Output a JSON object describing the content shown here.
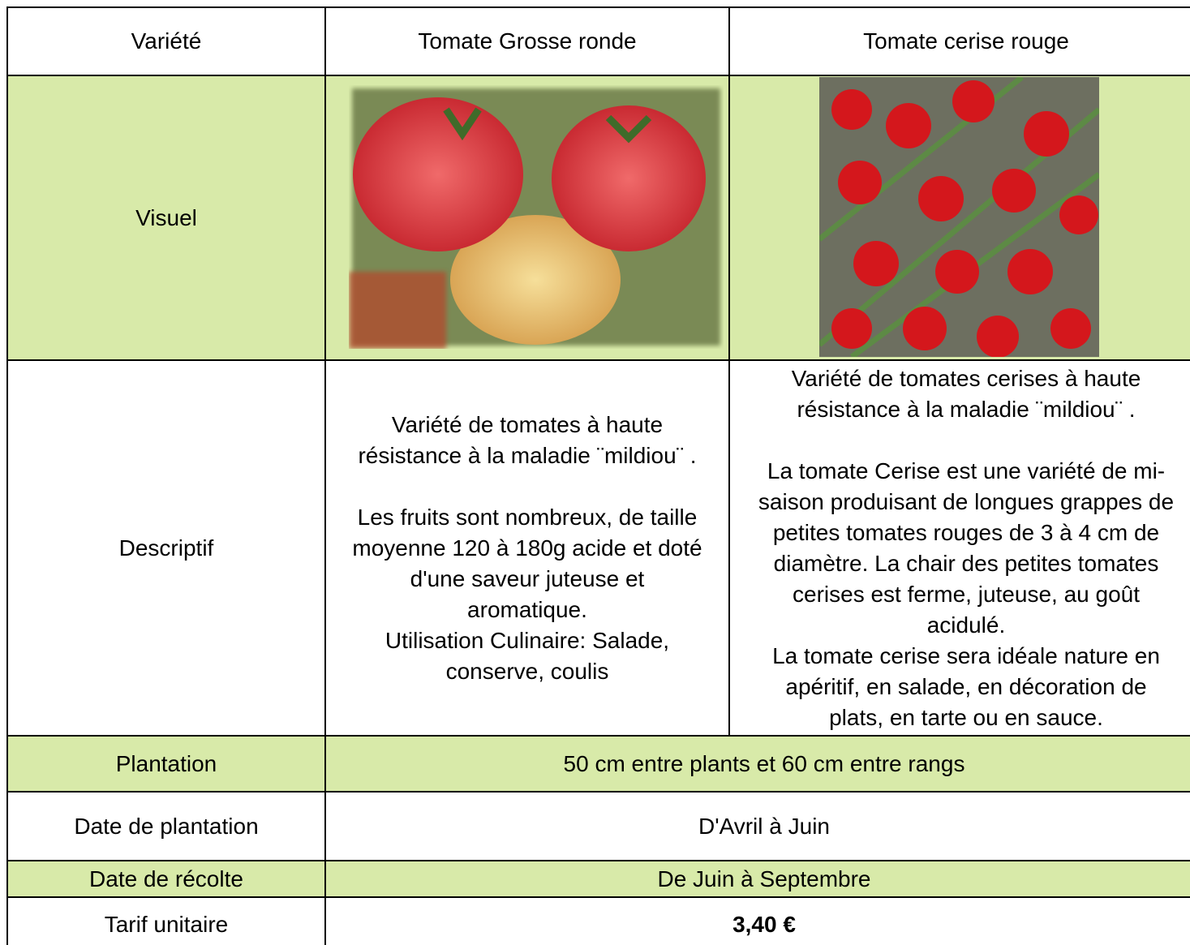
{
  "header": {
    "label": "Variété",
    "columns": [
      "Tomate Grosse ronde",
      "Tomate cerise rouge"
    ]
  },
  "visual": {
    "label": "Visuel"
  },
  "description": {
    "label": "Descriptif",
    "columns": [
      [
        [
          "Variété de tomates à haute",
          "résistance à la maladie ¨mildiou¨ ."
        ],
        [
          "Les fruits sont nombreux, de taille",
          "moyenne 120 à 180g acide et doté",
          "d'une saveur juteuse et",
          "aromatique.",
          "Utilisation Culinaire: Salade,",
          "conserve, coulis"
        ]
      ],
      [
        [
          "Variété de tomates cerises à haute",
          "résistance à la maladie ¨mildiou¨ ."
        ],
        [
          "La tomate Cerise est une variété de mi-",
          "saison produisant de longues grappes de",
          "petites tomates rouges de 3 à 4 cm de",
          "diamètre. La chair des petites tomates",
          "cerises est ferme, juteuse, au goût",
          "acidulé.",
          "La tomate cerise sera idéale nature en",
          "apéritif, en salade, en décoration de",
          "plats, en tarte ou en sauce."
        ]
      ]
    ]
  },
  "rows": [
    {
      "label": "Plantation",
      "value": "50 cm entre plants et 60 cm entre rangs"
    },
    {
      "label": "Date de plantation",
      "value": "D'Avril à Juin"
    },
    {
      "label": "Date de récolte",
      "value": "De Juin à Septembre"
    },
    {
      "label": "Tarif unitaire",
      "value": "3,40 €"
    }
  ]
}
